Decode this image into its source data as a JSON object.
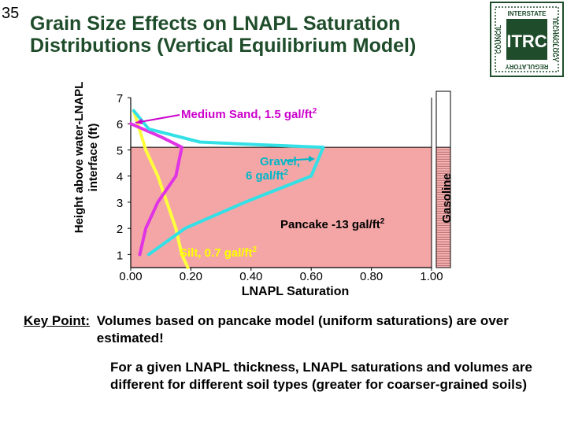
{
  "slide_number": "35",
  "title": "Grain Size Effects on LNAPL Saturation Distributions (Vertical Equilibrium Model)",
  "logo": {
    "brand": "ITRC",
    "ring_text": [
      "INTERSTATE",
      "TECHNOLOGY",
      "REGULATORY",
      "COUNCIL"
    ],
    "color": "#1f4d2b"
  },
  "chart_data": {
    "type": "line",
    "xlabel": "LNAPL Saturation",
    "ylabel": "Height above water-LNAPL interface (ft)",
    "xlim": [
      0,
      1
    ],
    "ylim": [
      0.5,
      7
    ],
    "x_ticks": [
      "0.00",
      "0.20",
      "0.40",
      "0.60",
      "0.80",
      "1.00"
    ],
    "x_tick_values": [
      0,
      0.2,
      0.4,
      0.6,
      0.8,
      1.0
    ],
    "y_ticks": [
      "1",
      "2",
      "3",
      "4",
      "5",
      "6",
      "7"
    ],
    "y_tick_values": [
      1,
      2,
      3,
      4,
      5,
      6,
      7
    ],
    "pancake_band": {
      "y_from": 0.5,
      "y_to": 5.1,
      "color": "#f4a6a6"
    },
    "series": [
      {
        "name": "Silt, 0.7 gal/ft2",
        "color": "#ffff3c",
        "x": [
          0.01,
          0.05,
          0.09,
          0.12,
          0.15,
          0.17,
          0.19
        ],
        "y": [
          6.5,
          5.0,
          4.0,
          3.0,
          2.0,
          1.0,
          0.5
        ]
      },
      {
        "name": "Medium Sand, 1.5 gal/ft2",
        "color": "#e033e6",
        "x": [
          0.0,
          0.1,
          0.17,
          0.15,
          0.09,
          0.05,
          0.03
        ],
        "y": [
          6.0,
          5.5,
          5.1,
          4.0,
          3.0,
          2.0,
          1.0
        ]
      },
      {
        "name": "Gravel, 6 gal/ft2",
        "color": "#33e0e6",
        "x": [
          0.01,
          0.06,
          0.23,
          0.42,
          0.64,
          0.6,
          0.38,
          0.18,
          0.06
        ],
        "y": [
          6.5,
          5.8,
          5.3,
          5.2,
          5.1,
          4.0,
          3.0,
          2.0,
          1.0
        ]
      }
    ],
    "labels": {
      "medium_sand": {
        "text": "Medium Sand, 1.5 gal/ft",
        "sup": "2",
        "color": "#cc00cc"
      },
      "gravel_line1": {
        "text": "Gravel,",
        "color": "#00b7c7"
      },
      "gravel_line2": {
        "text": "6 gal/ft",
        "sup": "2",
        "color": "#00b7c7"
      },
      "pancake": {
        "text": "Pancake -13 gal/ft",
        "sup": "2",
        "color": "#000000"
      },
      "silt": {
        "text": "Silt, 0.7 gal/ft",
        "sup": "2",
        "color": "#ffff00"
      },
      "gasoline": {
        "text": "Gasoline",
        "color": "#000000"
      }
    }
  },
  "key_point": {
    "label": "Key Point:",
    "text": "Volumes based on pancake model (uniform saturations) are over estimated!"
  },
  "note": "For a given LNAPL thickness, LNAPL saturations and volumes are different for different soil types (greater for coarser-grained soils)"
}
